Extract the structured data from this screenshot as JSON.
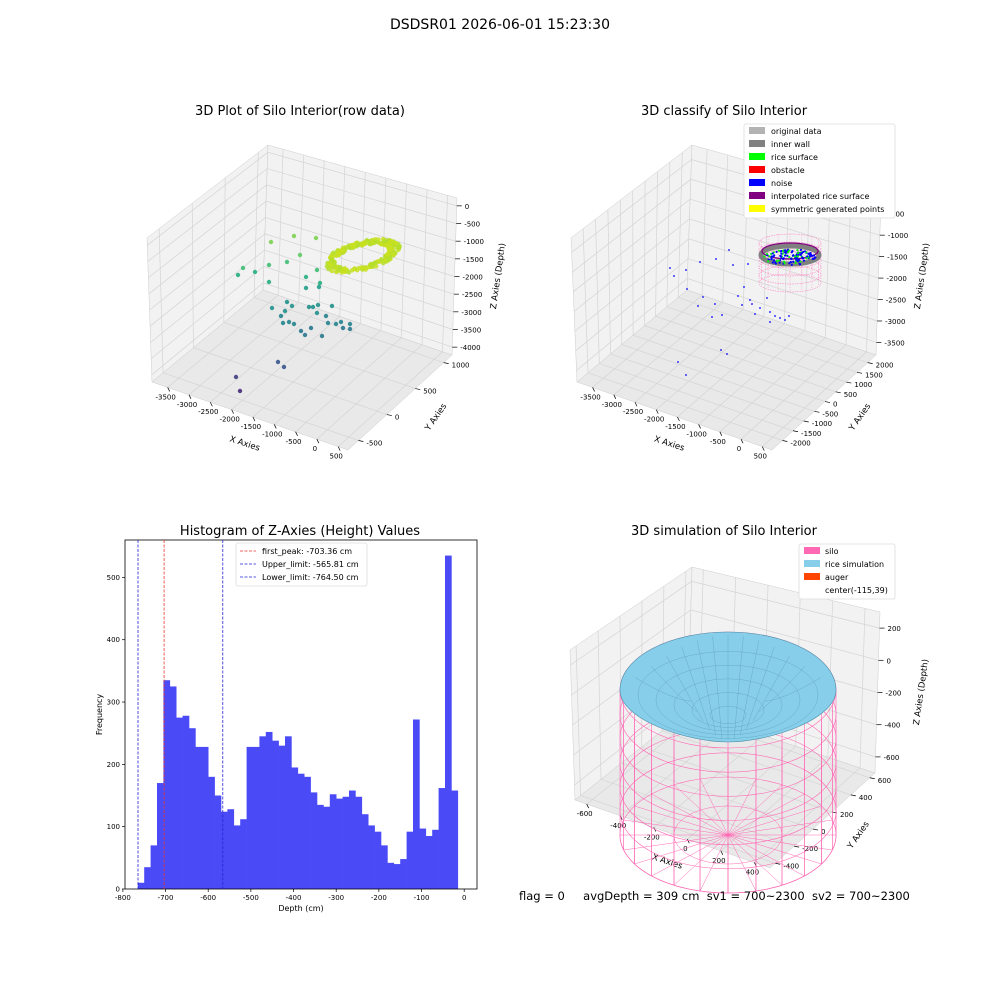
{
  "suptitle": "DSDSR01 2026-06-01 15:23:30",
  "colors": {
    "hist_bar": "#4a4af7",
    "first_peak_line": "#e8352e",
    "limit_line": "#2323d6",
    "silo": "#ff69b4",
    "rice_simulation": "#87ceeb",
    "auger": "#ff4500",
    "classify_original": "#b3b3b3",
    "classify_inner_wall": "#808080",
    "classify_rice_surface": "#00ff00",
    "classify_obstacle": "#ff0000",
    "classify_noise": "#0000ff",
    "classify_interpolated": "#800080",
    "classify_symmetric": "#ffff00"
  },
  "chart_data": [
    {
      "type": "scatter",
      "subtype": "3d",
      "title": "3D Plot of Silo Interior(row data)",
      "xlabel": "X Axies",
      "ylabel": "Y Axies",
      "zlabel": "Z Axies (Depth)",
      "x_ticks": [
        "-3500",
        "-3000",
        "-2500",
        "-2000",
        "-1500",
        "-1000",
        "-500",
        "0",
        "500"
      ],
      "y_ticks": [
        "-500",
        "0",
        "500",
        "1000"
      ],
      "z_ticks": [
        "0",
        "-500",
        "-1000",
        "-1500",
        "-2000",
        "-2500",
        "-3000",
        "-3500",
        "-4000"
      ],
      "colormap": "viridis"
    },
    {
      "type": "scatter",
      "subtype": "3d",
      "title": "3D classify of Silo Interior",
      "xlabel": "X Axies",
      "ylabel": "Y Axies",
      "zlabel": "Z Axies (Depth)",
      "x_ticks": [
        "-3500",
        "-3000",
        "-2500",
        "-2000",
        "-1500",
        "-1000",
        "-500",
        "0",
        "500"
      ],
      "y_ticks": [
        "-2000",
        "-1500",
        "-1000",
        "-500",
        "0",
        "500",
        "1000",
        "1500",
        "2000"
      ],
      "z_ticks": [
        "-500",
        "-1000",
        "-1500",
        "-2000",
        "-2500",
        "-3000",
        "-3500"
      ],
      "legend_position": "top-right",
      "legend": [
        {
          "label": "original data",
          "color": "#b3b3b3"
        },
        {
          "label": "inner wall",
          "color": "#808080"
        },
        {
          "label": "rice surface",
          "color": "#00ff00"
        },
        {
          "label": "obstacle",
          "color": "#ff0000"
        },
        {
          "label": "noise",
          "color": "#0000ff"
        },
        {
          "label": "interpolated rice surface",
          "color": "#800080"
        },
        {
          "label": "symmetric generated points",
          "color": "#ffff00"
        }
      ]
    },
    {
      "type": "bar",
      "subtype": "histogram",
      "title": "Histogram of Z-Axies (Height) Values",
      "xlabel": "Depth (cm)",
      "ylabel": "Frequency",
      "xlim": [
        -795,
        30
      ],
      "ylim": [
        0,
        560
      ],
      "x_ticks": [
        -800,
        -700,
        -600,
        -500,
        -400,
        -300,
        -200,
        -100,
        0
      ],
      "y_ticks": [
        0,
        100,
        200,
        300,
        400,
        500
      ],
      "bin_width": 15,
      "bin_start": -765,
      "counts": [
        10,
        35,
        70,
        170,
        335,
        325,
        275,
        278,
        258,
        228,
        228,
        180,
        150,
        124,
        128,
        102,
        112,
        228,
        228,
        245,
        252,
        238,
        230,
        245,
        195,
        185,
        180,
        155,
        135,
        132,
        152,
        145,
        148,
        158,
        148,
        120,
        102,
        92,
        70,
        42,
        40,
        48,
        92,
        272,
        97,
        85,
        95,
        162,
        535,
        158
      ],
      "lines": [
        {
          "label": "first_peak: -703.36 cm",
          "x": -703.36,
          "color": "#e8352e"
        },
        {
          "label": "Upper_limit: -565.81 cm",
          "x": -565.81,
          "color": "#2323d6"
        },
        {
          "label": "Lower_limit: -764.50 cm",
          "x": -764.5,
          "color": "#2323d6"
        }
      ],
      "legend_position": "top-center"
    },
    {
      "type": "area",
      "subtype": "3d-surface",
      "title": "3D simulation of Silo Interior",
      "xlabel": "X Axies",
      "ylabel": "Y Axies",
      "zlabel": "Z Axies (Depth)",
      "x_ticks": [
        "-600",
        "-400",
        "-200",
        "0",
        "200",
        "400"
      ],
      "y_ticks": [
        "-400",
        "-200",
        "0",
        "200",
        "400",
        "600"
      ],
      "z_ticks": [
        "200",
        "0",
        "-200",
        "-400",
        "-600"
      ],
      "legend_position": "top-right",
      "legend": [
        {
          "label": "silo",
          "color": "#ff69b4"
        },
        {
          "label": "rice simulation",
          "color": "#87ceeb"
        },
        {
          "label": "auger",
          "color": "#ff4500"
        },
        {
          "label": "center(-115,39)",
          "color": ""
        }
      ]
    }
  ],
  "footer": {
    "flag": "flag = 0",
    "avg_depth": "avgDepth = 309 cm",
    "sv1": "sv1 = 700~2300",
    "sv2": "sv2 = 700~2300"
  }
}
